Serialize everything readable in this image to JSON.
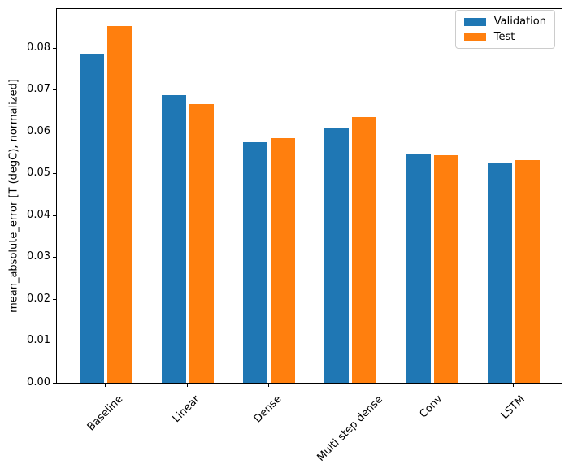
{
  "chart_data": {
    "type": "bar",
    "title": "",
    "xlabel": "",
    "ylabel": "mean_absolute_error [T (degC), normalized]",
    "categories": [
      "Baseline",
      "Linear",
      "Dense",
      "Multi step dense",
      "Conv",
      "LSTM"
    ],
    "series": [
      {
        "name": "Validation",
        "color": "#1f77b4",
        "values": [
          0.0785,
          0.0687,
          0.0574,
          0.0608,
          0.0546,
          0.0524
        ]
      },
      {
        "name": "Test",
        "color": "#ff7f0e",
        "values": [
          0.0853,
          0.0665,
          0.0585,
          0.0635,
          0.0544,
          0.0531
        ]
      }
    ],
    "ylim": [
      0,
      0.0893
    ],
    "y_ticks": [
      "0.00",
      "0.01",
      "0.02",
      "0.03",
      "0.04",
      "0.05",
      "0.06",
      "0.07",
      "0.08"
    ],
    "y_tick_step": 0.01,
    "grid": false,
    "legend_position": "upper right",
    "x_tick_rotation": 45
  }
}
